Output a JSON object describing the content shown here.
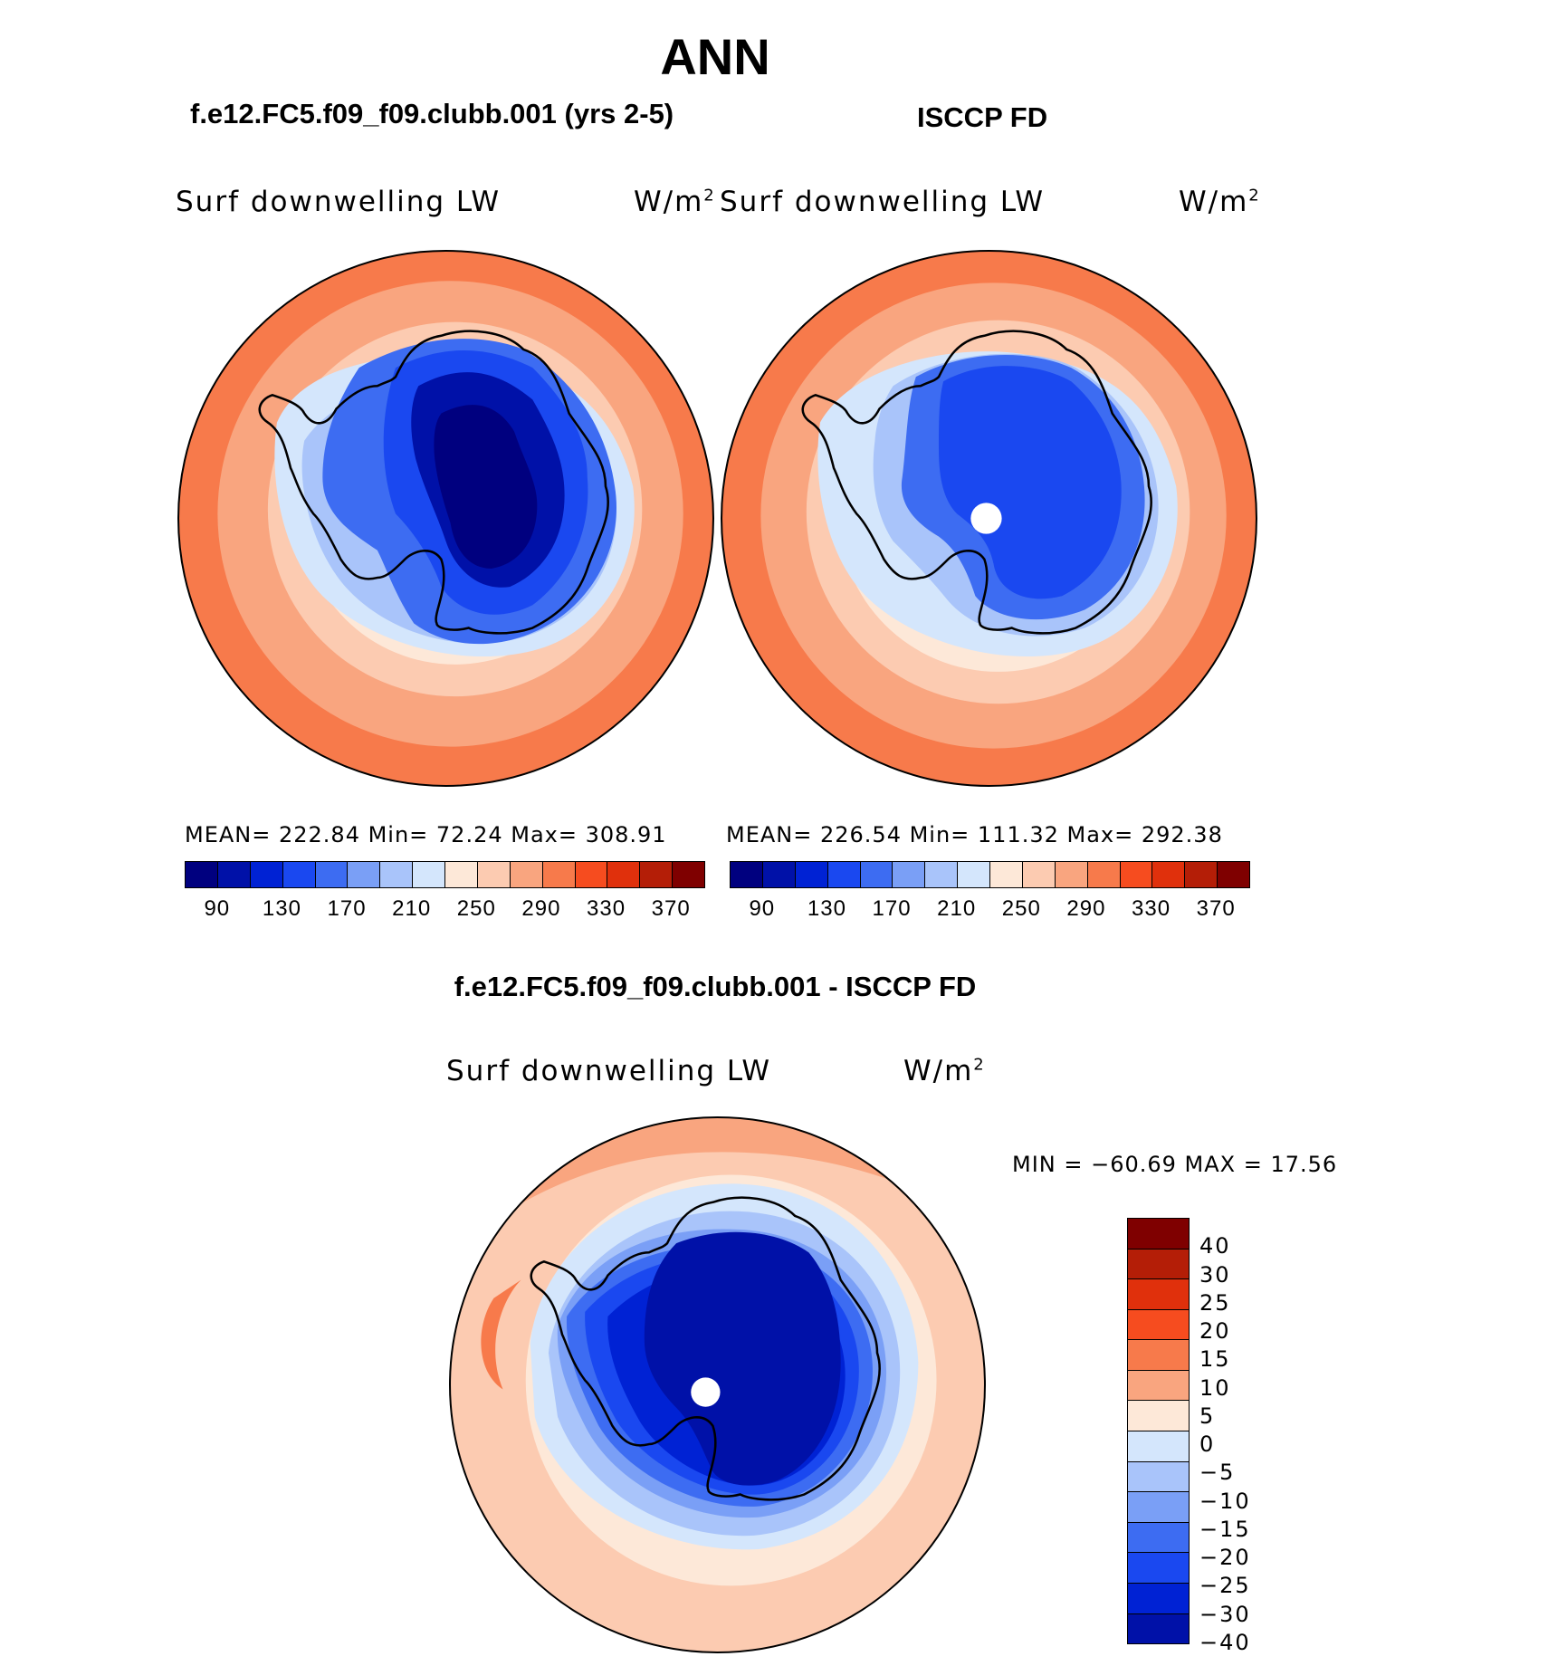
{
  "titles": {
    "main": "ANN",
    "left": "f.e12.FC5.f09_f09.clubb.001 (yrs 2-5)",
    "right": "ISCCP FD",
    "diff": "f.e12.FC5.f09_f09.clubb.001 - ISCCP FD"
  },
  "panels": {
    "left": {
      "variable": "Surf downwelling LW",
      "units": "W/m",
      "units_sup": "2",
      "stats": "MEAN=  222.84   Min=    72.24   Max=  308.91"
    },
    "right": {
      "variable": "Surf downwelling LW",
      "units": "W/m",
      "units_sup": "2",
      "stats": "MEAN=  226.54   Min=  111.32   Max=  292.38"
    },
    "diff": {
      "variable": "Surf downwelling LW",
      "units": "W/m",
      "units_sup": "2",
      "stats": "MIN  =  −60.69  MAX  =    17.56"
    }
  },
  "colorbar_abs": {
    "colors": [
      "#00007f",
      "#0011a8",
      "#0022d4",
      "#1a48f0",
      "#3d6cf2",
      "#7a9ff6",
      "#a9c4fa",
      "#d4e6fc",
      "#fde8d8",
      "#fccbb1",
      "#f9a57f",
      "#f77a4b",
      "#f64c1f",
      "#e0300c",
      "#b41e07",
      "#7f0000"
    ],
    "ticks": [
      "90",
      "130",
      "170",
      "210",
      "250",
      "290",
      "330",
      "370"
    ]
  },
  "colorbar_diff": {
    "colors": [
      "#7f0000",
      "#b41e07",
      "#e0300c",
      "#f64c1f",
      "#f77a4b",
      "#f9a57f",
      "#fde8d8",
      "#d4e6fc",
      "#a9c4fa",
      "#7a9ff6",
      "#3d6cf2",
      "#1a48f0",
      "#0022d4",
      "#0011a8"
    ],
    "ticks": [
      "40",
      "30",
      "25",
      "20",
      "15",
      "10",
      "5",
      "0",
      "−5",
      "−10",
      "−15",
      "−20",
      "−25",
      "−30",
      "−40"
    ]
  },
  "map_colors": {
    "ocean_far": "#f77a4b",
    "ring1": "#f9a57f",
    "ring2": "#fccbb1",
    "ring3": "#fde8d8",
    "ice1": "#d4e6fc",
    "ice2": "#a9c4fa",
    "ice3": "#7a9ff6",
    "ice4": "#3d6cf2",
    "ice5": "#1a48f0",
    "ice6": "#0022d4",
    "core": "#00007f",
    "coast": "#000000"
  }
}
